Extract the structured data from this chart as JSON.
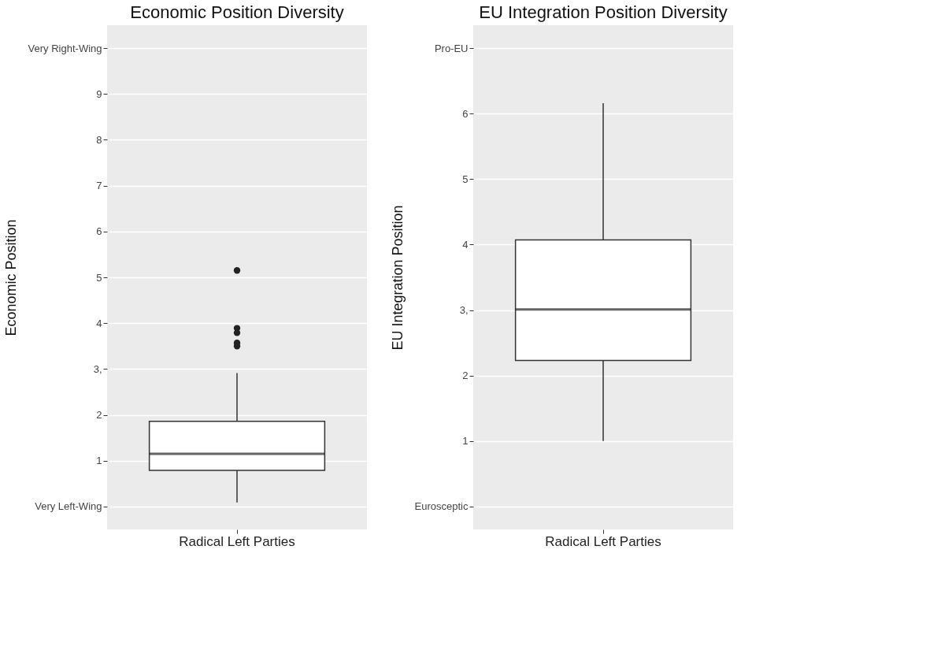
{
  "chart_data": [
    {
      "type": "box",
      "title": "Economic Position Diversity",
      "ylabel": "Economic Position",
      "categories": [
        "Radical Left Parties"
      ],
      "boxes": [
        {
          "low": 0.09,
          "q1": 0.79,
          "median": 1.15,
          "q3": 1.86,
          "high": 2.91,
          "outliers": [
            5.15,
            3.89,
            3.79,
            3.57,
            3.5
          ]
        }
      ],
      "ylim": [
        -0.5,
        10.5
      ],
      "yticks": [
        {
          "value": 0,
          "label": "Very Left-Wing"
        },
        1,
        2,
        {
          "value": 3,
          "label": "3,"
        },
        4,
        5,
        6,
        7,
        8,
        9,
        {
          "value": 10,
          "label": "Very Right-Wing"
        }
      ],
      "grid": "y"
    },
    {
      "type": "box",
      "title": "EU Integration Position Diversity",
      "ylabel": "EU Integration Position",
      "categories": [
        "Radical Left Parties"
      ],
      "boxes": [
        {
          "low": 1.0,
          "q1": 2.23,
          "median": 3.01,
          "q3": 4.07,
          "high": 6.16
        }
      ],
      "ylim": [
        -0.35,
        7.35
      ],
      "yticks": [
        {
          "value": 0,
          "label": "Eurosceptic"
        },
        1,
        2,
        {
          "value": 3,
          "label": "3,"
        },
        4,
        5,
        6,
        {
          "value": 7,
          "label": "Pro-EU"
        }
      ],
      "grid": "y"
    }
  ]
}
